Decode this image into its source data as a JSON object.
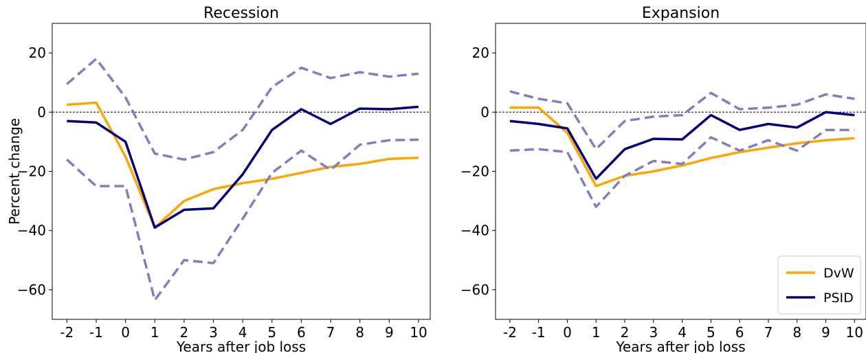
{
  "chart_data": [
    {
      "type": "line",
      "title": "Recession",
      "xlabel": "Years after job loss",
      "ylabel": "Percent change",
      "x": [
        -2,
        -1,
        0,
        1,
        2,
        3,
        4,
        5,
        6,
        7,
        8,
        9,
        10
      ],
      "x_tick_labels": [
        "-2",
        "-1",
        "0",
        "1",
        "2",
        "3",
        "4",
        "5",
        "6",
        "7",
        "8",
        "9",
        "10"
      ],
      "y_ticks": [
        20,
        0,
        -20,
        -40,
        -60
      ],
      "y_tick_labels": [
        "20",
        "0",
        "−20",
        "−40",
        "−60"
      ],
      "xlim": [
        -2.5,
        10.4
      ],
      "ylim": [
        -70,
        30
      ],
      "reference_line": 0,
      "series": [
        {
          "name": "DvW",
          "color": "#FFA500",
          "style": "solid",
          "values": [
            2.5,
            3.2,
            -15,
            -39,
            -30,
            -26,
            -24,
            -22.5,
            -20.5,
            -18.5,
            -17.5,
            -15.8,
            -15.4
          ]
        },
        {
          "name": "PSID",
          "color": "#00007F",
          "style": "solid",
          "values": [
            -3,
            -3.5,
            -10,
            -39,
            -33,
            -32.5,
            -21,
            -6,
            1,
            -4,
            1.2,
            1,
            1.8
          ]
        },
        {
          "color": "#7F7FBF",
          "style": "dashed",
          "values": [
            9.5,
            18,
            5,
            -14,
            -16,
            -13.5,
            -6,
            8.5,
            15,
            11.5,
            13.5,
            12,
            13
          ]
        },
        {
          "color": "#7F7FBF",
          "style": "dashed",
          "values": [
            -16,
            -25,
            -25,
            -63.5,
            -50,
            -51,
            -36,
            -20.5,
            -13,
            -19.5,
            -11,
            -9.5,
            -9.3
          ]
        }
      ]
    },
    {
      "type": "line",
      "title": "Expansion",
      "xlabel": "Years after job loss",
      "ylabel": "",
      "x": [
        -2,
        -1,
        0,
        1,
        2,
        3,
        4,
        5,
        6,
        7,
        8,
        9,
        10
      ],
      "x_tick_labels": [
        "-2",
        "-1",
        "0",
        "1",
        "2",
        "3",
        "4",
        "5",
        "6",
        "7",
        "8",
        "9",
        "10"
      ],
      "y_ticks": [
        20,
        0,
        -20,
        -40,
        -60
      ],
      "y_tick_labels": [
        "20",
        "0",
        "−20",
        "−40",
        "−60"
      ],
      "xlim": [
        -2.5,
        10.4
      ],
      "ylim": [
        -70,
        30
      ],
      "reference_line": 0,
      "legend": {
        "position": "bottom-right",
        "entries": [
          "DvW",
          "PSID"
        ]
      },
      "series": [
        {
          "name": "DvW",
          "color": "#FFA500",
          "style": "solid",
          "values": [
            1.5,
            1.5,
            -7,
            -25,
            -21.5,
            -20,
            -18,
            -15.5,
            -13.5,
            -12,
            -10.5,
            -9.5,
            -8.8
          ]
        },
        {
          "name": "PSID",
          "color": "#00007F",
          "style": "solid",
          "values": [
            -3,
            -4,
            -5.5,
            -22.5,
            -12.5,
            -9,
            -9.2,
            -1,
            -6,
            -4,
            -5.2,
            0,
            -1
          ]
        },
        {
          "color": "#7F7FBF",
          "style": "dashed",
          "values": [
            7,
            4.5,
            3,
            -12.5,
            -3,
            -1.5,
            -1,
            6.5,
            1,
            1.5,
            2.5,
            6,
            4.5
          ]
        },
        {
          "color": "#7F7FBF",
          "style": "dashed",
          "values": [
            -13,
            -12.5,
            -13.5,
            -32,
            -21.5,
            -16.5,
            -17.5,
            -8.5,
            -13,
            -9.5,
            -13,
            -6,
            -6
          ]
        }
      ]
    }
  ]
}
